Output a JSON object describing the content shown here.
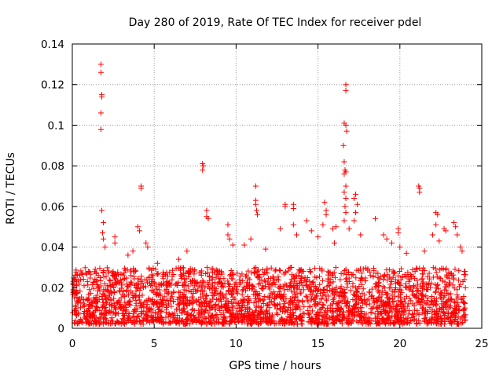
{
  "chart_data": {
    "type": "scatter",
    "title": "Day 280 of 2019, Rate Of TEC Index for receiver pdel",
    "xlabel": "GPS time / hours",
    "ylabel": "ROTI / TECUs",
    "xlim": [
      0,
      25
    ],
    "ylim": [
      0,
      0.14
    ],
    "x_ticks": [
      0,
      5,
      10,
      15,
      20,
      25
    ],
    "x_tick_labels": [
      "0",
      "5",
      "10",
      "15",
      "20",
      "25"
    ],
    "y_ticks": [
      0,
      0.02,
      0.04,
      0.06,
      0.08,
      0.1,
      0.12,
      0.14
    ],
    "y_tick_labels": [
      "0",
      "0.02",
      "0.04",
      "0.06",
      "0.08",
      "0.1",
      "0.12",
      "0.14"
    ],
    "grid": true,
    "marker": "+",
    "color": "#ff0000",
    "series": [
      {
        "name": "ROTI",
        "background_band": {
          "x_range": [
            0,
            24
          ],
          "y_range": [
            0.002,
            0.03
          ],
          "density": "dense"
        },
        "points": [
          [
            1.75,
            0.13
          ],
          [
            1.75,
            0.126
          ],
          [
            1.8,
            0.115
          ],
          [
            1.8,
            0.114
          ],
          [
            1.75,
            0.106
          ],
          [
            1.75,
            0.098
          ],
          [
            1.8,
            0.058
          ],
          [
            1.9,
            0.052
          ],
          [
            1.85,
            0.047
          ],
          [
            1.9,
            0.044
          ],
          [
            2.0,
            0.04
          ],
          [
            2.6,
            0.045
          ],
          [
            2.6,
            0.042
          ],
          [
            3.4,
            0.036
          ],
          [
            3.7,
            0.038
          ],
          [
            4.2,
            0.07
          ],
          [
            4.2,
            0.069
          ],
          [
            4.0,
            0.05
          ],
          [
            4.1,
            0.048
          ],
          [
            4.5,
            0.042
          ],
          [
            4.6,
            0.04
          ],
          [
            5.2,
            0.032
          ],
          [
            6.5,
            0.034
          ],
          [
            7.0,
            0.038
          ],
          [
            7.95,
            0.081
          ],
          [
            8.0,
            0.08
          ],
          [
            7.95,
            0.078
          ],
          [
            8.2,
            0.058
          ],
          [
            8.2,
            0.055
          ],
          [
            8.3,
            0.054
          ],
          [
            9.5,
            0.051
          ],
          [
            9.5,
            0.046
          ],
          [
            9.6,
            0.044
          ],
          [
            9.8,
            0.041
          ],
          [
            10.5,
            0.041
          ],
          [
            10.9,
            0.044
          ],
          [
            11.2,
            0.07
          ],
          [
            11.2,
            0.063
          ],
          [
            11.2,
            0.061
          ],
          [
            11.25,
            0.058
          ],
          [
            11.3,
            0.056
          ],
          [
            11.8,
            0.039
          ],
          [
            12.7,
            0.049
          ],
          [
            13.0,
            0.061
          ],
          [
            13.0,
            0.06
          ],
          [
            13.5,
            0.061
          ],
          [
            13.5,
            0.059
          ],
          [
            13.5,
            0.051
          ],
          [
            13.7,
            0.046
          ],
          [
            14.3,
            0.053
          ],
          [
            14.6,
            0.048
          ],
          [
            15.0,
            0.045
          ],
          [
            15.4,
            0.062
          ],
          [
            15.5,
            0.058
          ],
          [
            15.5,
            0.056
          ],
          [
            15.3,
            0.051
          ],
          [
            15.9,
            0.049
          ],
          [
            16.0,
            0.042
          ],
          [
            16.1,
            0.05
          ],
          [
            16.7,
            0.12
          ],
          [
            16.7,
            0.117
          ],
          [
            16.6,
            0.101
          ],
          [
            16.7,
            0.1
          ],
          [
            16.75,
            0.097
          ],
          [
            16.55,
            0.09
          ],
          [
            16.6,
            0.082
          ],
          [
            16.65,
            0.078
          ],
          [
            16.7,
            0.077
          ],
          [
            16.6,
            0.076
          ],
          [
            16.7,
            0.07
          ],
          [
            16.6,
            0.067
          ],
          [
            16.7,
            0.064
          ],
          [
            16.65,
            0.06
          ],
          [
            16.7,
            0.057
          ],
          [
            16.6,
            0.053
          ],
          [
            16.9,
            0.049
          ],
          [
            17.2,
            0.064
          ],
          [
            17.3,
            0.066
          ],
          [
            17.4,
            0.061
          ],
          [
            17.3,
            0.057
          ],
          [
            17.2,
            0.053
          ],
          [
            17.6,
            0.046
          ],
          [
            18.5,
            0.054
          ],
          [
            19.0,
            0.046
          ],
          [
            19.2,
            0.044
          ],
          [
            19.5,
            0.042
          ],
          [
            19.9,
            0.049
          ],
          [
            19.9,
            0.047
          ],
          [
            20.0,
            0.04
          ],
          [
            20.4,
            0.037
          ],
          [
            21.15,
            0.07
          ],
          [
            21.2,
            0.069
          ],
          [
            21.2,
            0.067
          ],
          [
            21.5,
            0.038
          ],
          [
            22.2,
            0.057
          ],
          [
            22.3,
            0.056
          ],
          [
            22.2,
            0.051
          ],
          [
            22.0,
            0.046
          ],
          [
            22.4,
            0.043
          ],
          [
            22.7,
            0.049
          ],
          [
            22.8,
            0.048
          ],
          [
            23.3,
            0.052
          ],
          [
            23.4,
            0.05
          ],
          [
            23.5,
            0.046
          ],
          [
            23.7,
            0.04
          ],
          [
            23.8,
            0.038
          ],
          [
            0.3,
            0.026
          ],
          [
            0.2,
            0.024
          ],
          [
            1.0,
            0.028
          ]
        ]
      }
    ]
  }
}
